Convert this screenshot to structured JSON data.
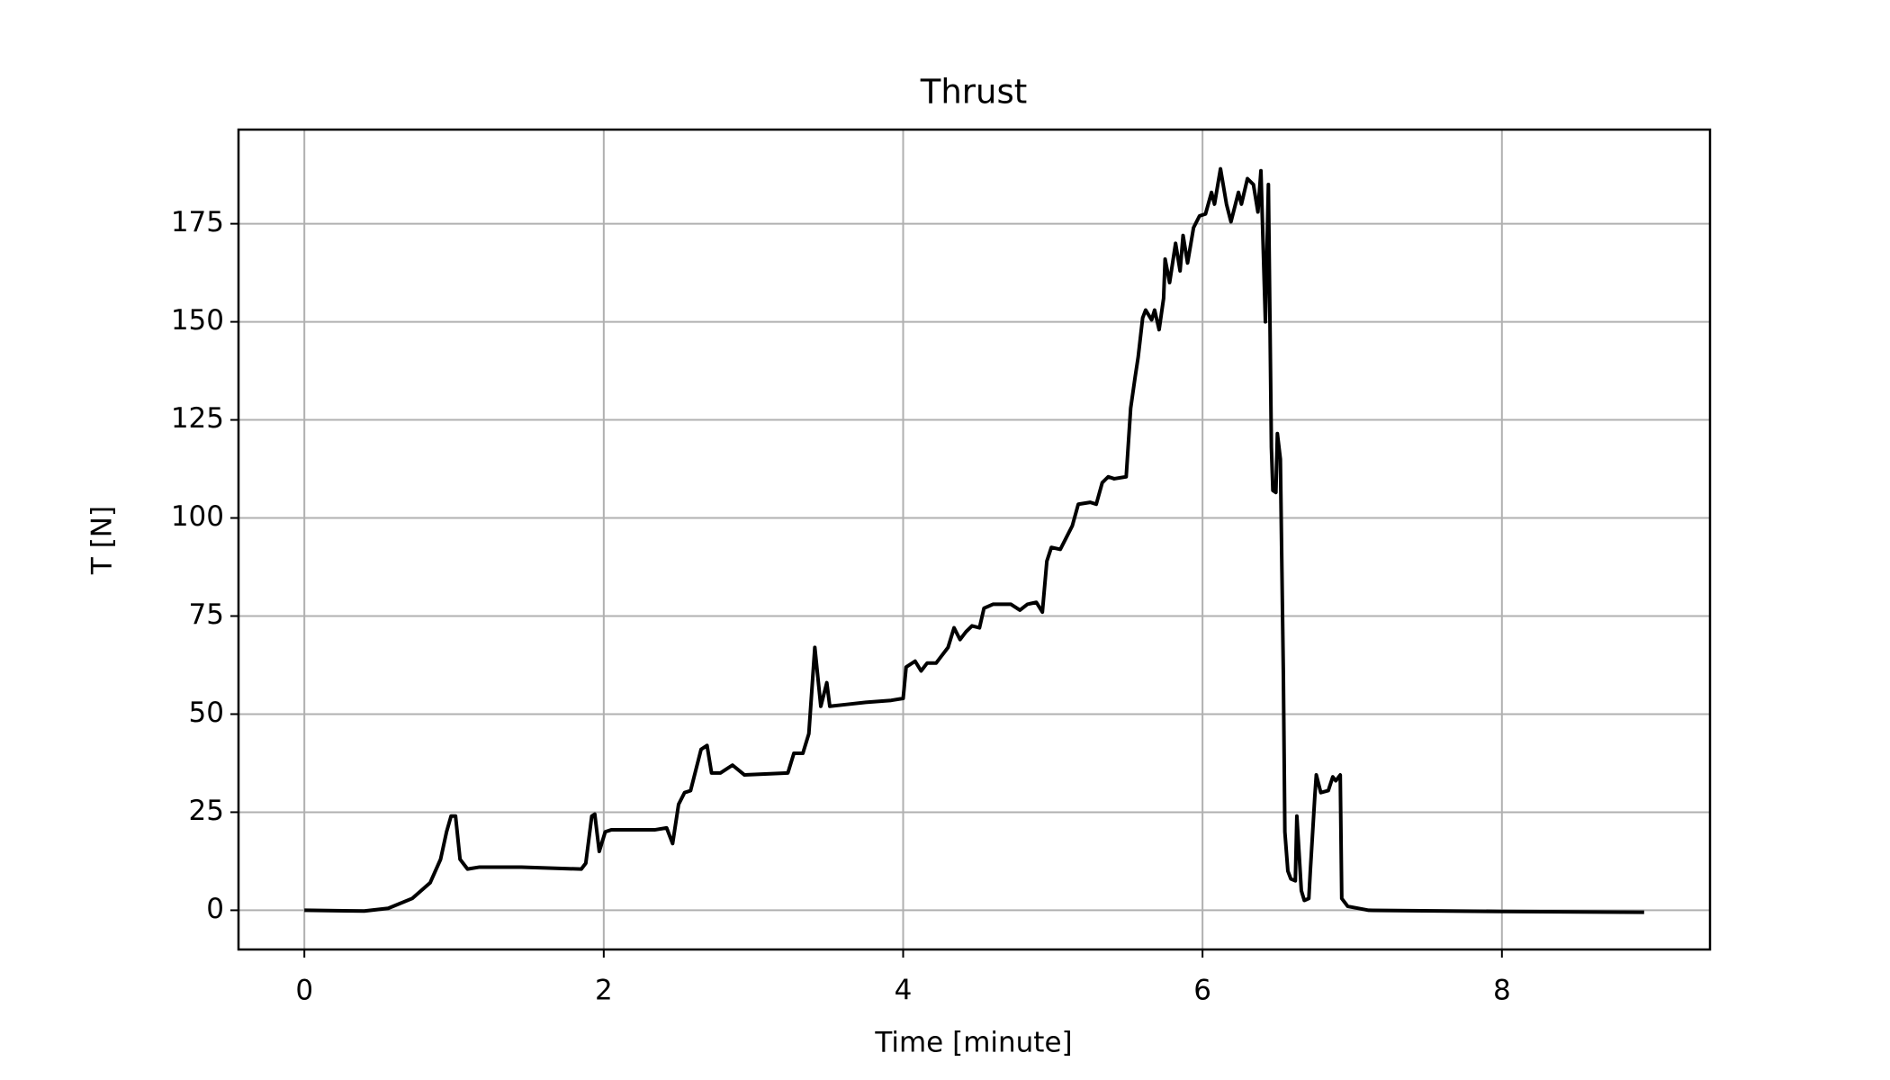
{
  "chart_data": {
    "type": "line",
    "title": "Thrust",
    "x_label": "Time [minute]",
    "y_label": "T [N]",
    "xlim": [
      -0.44,
      9.39
    ],
    "ylim": [
      -10,
      199
    ],
    "xticks": [
      0,
      2,
      4,
      6,
      8
    ],
    "yticks": [
      0,
      25,
      50,
      75,
      100,
      125,
      150,
      175
    ],
    "grid": true,
    "series": [
      {
        "name": "Thrust",
        "color": "#000000",
        "x": [
          0,
          0.4,
          0.56,
          0.72,
          0.84,
          0.91,
          0.95,
          0.98,
          1.01,
          1.04,
          1.09,
          1.17,
          1.45,
          1.85,
          1.88,
          1.92,
          1.94,
          1.97,
          2.01,
          2.05,
          2.34,
          2.42,
          2.46,
          2.5,
          2.54,
          2.58,
          2.65,
          2.69,
          2.72,
          2.78,
          2.86,
          2.94,
          3.23,
          3.27,
          3.33,
          3.37,
          3.39,
          3.41,
          3.45,
          3.49,
          3.51,
          3.63,
          3.75,
          3.92,
          4.0,
          4.02,
          4.08,
          4.12,
          4.16,
          4.22,
          4.26,
          4.3,
          4.34,
          4.38,
          4.42,
          4.46,
          4.51,
          4.54,
          4.6,
          4.72,
          4.78,
          4.83,
          4.89,
          4.93,
          4.96,
          4.99,
          5.05,
          5.09,
          5.13,
          5.17,
          5.25,
          5.29,
          5.33,
          5.37,
          5.41,
          5.49,
          5.52,
          5.55,
          5.57,
          5.6,
          5.62,
          5.66,
          5.68,
          5.71,
          5.74,
          5.75,
          5.78,
          5.82,
          5.85,
          5.87,
          5.9,
          5.94,
          5.98,
          6.02,
          6.06,
          6.08,
          6.12,
          6.16,
          6.19,
          6.24,
          6.26,
          6.3,
          6.34,
          6.37,
          6.39,
          6.42,
          6.44,
          6.46,
          6.47,
          6.49,
          6.5,
          6.52,
          6.54,
          6.55,
          6.57,
          6.59,
          6.62,
          6.63,
          6.66,
          6.68,
          6.71,
          6.72,
          6.75,
          6.76,
          6.79,
          6.84,
          6.87,
          6.89,
          6.92,
          6.93,
          6.97,
          7.11,
          8.0,
          8.95
        ],
        "values": [
          0,
          -0.2,
          0.5,
          3,
          7,
          13,
          20,
          24,
          24,
          13,
          10.5,
          11,
          11,
          10.5,
          12,
          24,
          24.5,
          15,
          20,
          20.5,
          20.5,
          21,
          17,
          27,
          30,
          30.5,
          41,
          42,
          35,
          35,
          37,
          34.5,
          35,
          40,
          40,
          45,
          56,
          67,
          52,
          58,
          52,
          52.5,
          53,
          53.5,
          54,
          62,
          63.5,
          61,
          63,
          63,
          65,
          67,
          72,
          69,
          71,
          72.5,
          72,
          77,
          78,
          78,
          76.5,
          78,
          78.5,
          76,
          89,
          92.5,
          92,
          95,
          98,
          103.5,
          104,
          103.5,
          109,
          110.5,
          110,
          110.5,
          128,
          136,
          141,
          151,
          153,
          150.5,
          153,
          148,
          156,
          166,
          160,
          170,
          163,
          172,
          165,
          174,
          177,
          177.5,
          183,
          180,
          189,
          180,
          175.5,
          183,
          180,
          186.5,
          185,
          178,
          188.5,
          150,
          185,
          118,
          107,
          106.5,
          121.5,
          115,
          60,
          20,
          10,
          8,
          7.5,
          24,
          5,
          2.5,
          3,
          10,
          29,
          34.5,
          30,
          30.5,
          34,
          33,
          34.5,
          3,
          1,
          0,
          -0.3,
          -0.5
        ]
      }
    ]
  }
}
